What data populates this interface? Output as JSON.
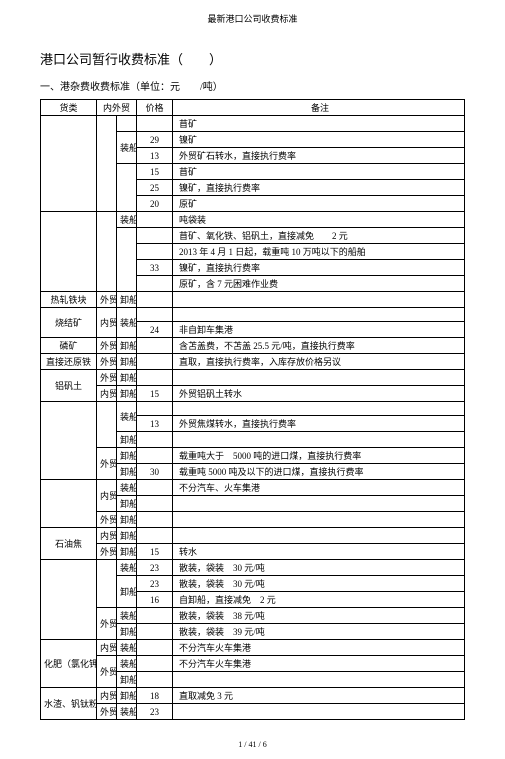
{
  "topHeader": "最新港口公司收费标准",
  "mainTitle": "港口公司暂行收费标准（　　）",
  "sectionTitle": "一、港杂费收费标准（单位：元　　/吨）",
  "headers": {
    "category": "货类",
    "trade": "内外贸",
    "ship": "",
    "price": "价格",
    "note": "备注"
  },
  "footer": "1 / 41 / 6",
  "rows": [
    {
      "cat": "",
      "trade": "",
      "ship": "",
      "price": "",
      "note": "苜矿"
    },
    {
      "cat": "",
      "trade": "",
      "ship": "装船",
      "price": "29",
      "note": "镍矿"
    },
    {
      "cat": "",
      "trade": "内贸",
      "ship": "",
      "price": "13",
      "note": "外贸矿石转水，直接执行费率"
    },
    {
      "cat": "",
      "trade": "",
      "ship": "",
      "price": "15",
      "note": "苜矿"
    },
    {
      "cat": "",
      "trade": "",
      "ship": "卸船",
      "price": "25",
      "note": "镍矿，直接执行费率"
    },
    {
      "cat": "铁矿石",
      "trade": "",
      "ship": "",
      "price": "20",
      "note": "原矿"
    },
    {
      "cat": "",
      "trade": "",
      "ship": "装船",
      "price": "",
      "note": "吨袋装"
    },
    {
      "cat": "",
      "trade": "",
      "ship": "",
      "price": "",
      "note": "苜矿、氧化铁、铝矾土，直接减免　　2 元"
    },
    {
      "cat": "",
      "trade": "外贸",
      "ship": "卸船",
      "price": "",
      "note": "2013 年 4 月 1 日起，载重吨 10 万吨以下的船舶"
    },
    {
      "cat": "",
      "trade": "",
      "ship": "",
      "price": "33",
      "note": "镍矿，直接执行费率"
    },
    {
      "cat": "",
      "trade": "",
      "ship": "",
      "price": "",
      "note": "原矿，含 7 元困难作业费"
    },
    {
      "cat": "热轧铁块",
      "trade": "外贸",
      "ship": "卸船",
      "price": "",
      "note": ""
    },
    {
      "cat": "烧结矿",
      "trade": "内贸",
      "ship": "装船",
      "price": "",
      "note": ""
    },
    {
      "cat": "",
      "trade": "",
      "ship": "",
      "price": "24",
      "note": "非自卸车集港"
    },
    {
      "cat": "磷矿",
      "trade": "外贸",
      "ship": "卸船",
      "price": "",
      "note": "含苫盖费，不苫盖 25.5 元/吨，直接执行费率"
    },
    {
      "cat": "直接还原铁",
      "trade": "外贸",
      "ship": "卸船",
      "price": "",
      "note": "直取，直接执行费率，入库存放价格另议"
    },
    {
      "cat": "铝矾土",
      "trade": "外贸",
      "ship": "卸船",
      "price": "",
      "note": ""
    },
    {
      "cat": "",
      "trade": "内贸",
      "ship": "卸船",
      "price": "15",
      "note": "外贸铝矾土转水"
    },
    {
      "cat": "",
      "trade": "",
      "ship": "装船",
      "price": "",
      "note": ""
    },
    {
      "cat": "",
      "trade": "内贸",
      "ship": "",
      "price": "13",
      "note": "外贸焦煤转水，直接执行费率"
    },
    {
      "cat": "焦煤",
      "trade": "",
      "ship": "卸船",
      "price": "",
      "note": ""
    },
    {
      "cat": "",
      "trade": "外贸",
      "ship": "卸船",
      "price": "",
      "note": "载重吨大于　5000 吨的进口煤，直接执行费率"
    },
    {
      "cat": "",
      "trade": "",
      "ship": "卸船",
      "price": "30",
      "note": "载重吨 5000 吨及以下的进口煤，直接执行费率"
    },
    {
      "cat": "",
      "trade": "内贸",
      "ship": "装船",
      "price": "",
      "note": "不分汽车、火车集港"
    },
    {
      "cat": "焦炭",
      "trade": "",
      "ship": "卸船",
      "price": "",
      "note": ""
    },
    {
      "cat": "",
      "trade": "外贸",
      "ship": "卸船",
      "price": "",
      "note": ""
    },
    {
      "cat": "石油焦",
      "trade": "内贸",
      "ship": "卸船",
      "price": "",
      "note": ""
    },
    {
      "cat": "",
      "trade": "外贸",
      "ship": "卸船",
      "price": "15",
      "note": "转水"
    },
    {
      "cat": "",
      "trade": "",
      "ship": "装船",
      "price": "23",
      "note": "散装，袋装　30 元/吨"
    },
    {
      "cat": "",
      "trade": "内贸",
      "ship": "卸船",
      "price": "23",
      "note": "散装，袋装　30 元/吨"
    },
    {
      "cat": "盐",
      "trade": "",
      "ship": "",
      "price": "16",
      "note": "自卸船，直接减免　2 元"
    },
    {
      "cat": "",
      "trade": "外贸",
      "ship": "装船",
      "price": "",
      "note": "散装，袋装　38 元/吨"
    },
    {
      "cat": "",
      "trade": "",
      "ship": "卸船",
      "price": "",
      "note": "散装，袋装　39 元/吨"
    },
    {
      "cat": "化肥（氯化钾）",
      "trade": "内贸",
      "ship": "装船",
      "price": "",
      "note": "不分汽车火车集港"
    },
    {
      "cat": "",
      "trade": "外贸",
      "ship": "装船",
      "price": "",
      "note": "不分汽车火车集港"
    },
    {
      "cat": "",
      "trade": "",
      "ship": "卸船",
      "price": "",
      "note": ""
    },
    {
      "cat": "水渣、钒钛粉",
      "trade": "内贸",
      "ship": "卸船",
      "price": "18",
      "note": "直取减免 3 元"
    },
    {
      "cat": "",
      "trade": "外贸",
      "ship": "装船",
      "price": "23",
      "note": ""
    }
  ],
  "spans": {
    "catSpans": {
      "0": 6,
      "6": 5,
      "11": 1,
      "12": 2,
      "14": 1,
      "15": 1,
      "16": 2,
      "18": 5,
      "23": 3,
      "26": 2,
      "28": 5,
      "33": 3,
      "36": 2
    },
    "tradeSpans": {
      "0": 6,
      "6": 5,
      "11": 1,
      "12": 2,
      "14": 1,
      "15": 1,
      "16": 1,
      "17": 1,
      "18": 3,
      "21": 2,
      "23": 2,
      "25": 1,
      "26": 1,
      "27": 1,
      "28": 3,
      "31": 2,
      "33": 1,
      "34": 2,
      "36": 1,
      "37": 1
    },
    "shipSpans": {
      "0": 1,
      "1": 2,
      "3": 3,
      "6": 1,
      "7": 4,
      "11": 1,
      "12": 2,
      "14": 1,
      "15": 1,
      "16": 1,
      "17": 1,
      "18": 2,
      "20": 1,
      "21": 1,
      "22": 1,
      "23": 1,
      "24": 1,
      "25": 1,
      "26": 1,
      "27": 1,
      "28": 1,
      "29": 2,
      "31": 1,
      "32": 1,
      "33": 1,
      "34": 1,
      "35": 1,
      "36": 1,
      "37": 1
    }
  }
}
